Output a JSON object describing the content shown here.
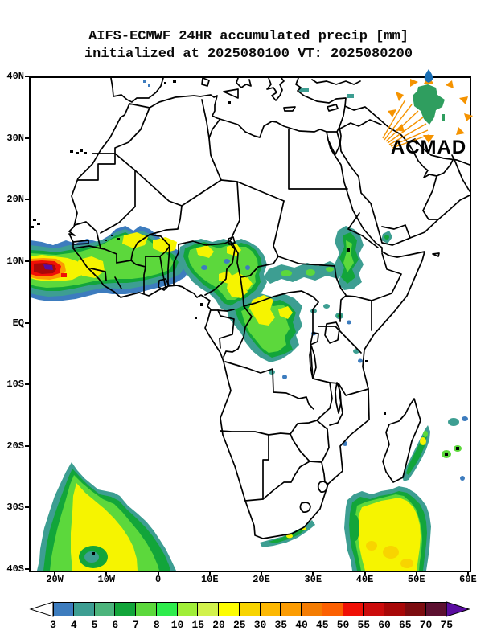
{
  "title": {
    "line1": "AIFS-ECMWF 24HR accumulated precip [mm]",
    "line2": "initialized at 2025080100 VT: 2025080200"
  },
  "logo": {
    "text": "ACMAD",
    "text_color": "#1566a8",
    "africa_color": "#2f9e5f",
    "ray_color": "#f59300",
    "drop_color": "#1a6fb5"
  },
  "axes": {
    "lat_labels": [
      "40N",
      "30N",
      "20N",
      "10N",
      "EQ",
      "10S",
      "20S",
      "30S",
      "40S"
    ],
    "lon_labels": [
      "20W",
      "10W",
      "0",
      "10E",
      "20E",
      "30E",
      "40E",
      "50E",
      "60E"
    ]
  },
  "colorbar": {
    "labels": [
      "3",
      "4",
      "5",
      "6",
      "7",
      "8",
      "10",
      "15",
      "20",
      "25",
      "30",
      "35",
      "40",
      "45",
      "50",
      "55",
      "60",
      "65",
      "70",
      "75"
    ],
    "cell_colors": [
      "#3d7cbe",
      "#3d9e92",
      "#4cb47c",
      "#12a53a",
      "#5cd83c",
      "#2eec4c",
      "#a0ee38",
      "#d2f24c",
      "#fdfd02",
      "#f8d400",
      "#fdb802",
      "#fc9c02",
      "#f47c02",
      "#fc6002",
      "#f01006",
      "#cc0c0c",
      "#a80808",
      "#7c0c10",
      "#5c1030"
    ],
    "under_color": "#ffffff",
    "over_color": "#5a0da0"
  },
  "chart_data": {
    "type": "heatmap",
    "subtype": "filled-contour geographic precipitation map",
    "title": "AIFS-ECMWF 24HR accumulated precip [mm]",
    "model": "AIFS-ECMWF",
    "variable": "24HR accumulated precipitation",
    "units": "mm",
    "initialized": "2025080100",
    "valid_time": "2025080200",
    "source": "ACMAD",
    "domain": {
      "lon_range": [
        -25,
        60
      ],
      "lat_range": [
        -40,
        40
      ]
    },
    "scale_levels_mm": [
      3,
      4,
      5,
      6,
      7,
      8,
      10,
      15,
      20,
      25,
      30,
      35,
      40,
      45,
      50,
      55,
      60,
      65,
      70,
      75
    ],
    "legend_position": "bottom",
    "grid": false,
    "precip_regions": [
      {
        "name": "West Africa offshore core (Guinea/Sierra Leone coast)",
        "lon": [
          -25,
          -12
        ],
        "lat": [
          5,
          12
        ],
        "max_mm": "75+",
        "note": "intense red core with small >75mm purple spot near 19W,8N"
      },
      {
        "name": "Sahel band Senegal-Mali-Burkina-Niger",
        "lon": [
          -17,
          5
        ],
        "lat": [
          8,
          15
        ],
        "max_mm": 25,
        "note": "green band with yellow cores near 5W,14N and 0E,14N"
      },
      {
        "name": "Guinea highlands",
        "lon": [
          -14,
          -9
        ],
        "lat": [
          8,
          12
        ],
        "max_mm": 25
      },
      {
        "name": "Nigeria-Cameroon band",
        "lon": [
          4,
          16
        ],
        "lat": [
          4,
          13
        ],
        "max_mm": 25,
        "note": "green with scattered yellow cells"
      },
      {
        "name": "CAR / Congo basin mass",
        "lon": [
          14,
          27
        ],
        "lat": [
          -5,
          9
        ],
        "max_mm": 25,
        "note": "broad green with yellow cores near 15E,7N and 20E,2N"
      },
      {
        "name": "South Sudan teal arm",
        "lon": [
          22,
          34
        ],
        "lat": [
          4,
          10
        ],
        "max_mm": 8
      },
      {
        "name": "Ethiopian highlands blob",
        "lon": [
          34,
          40
        ],
        "lat": [
          6,
          16
        ],
        "max_mm": 10
      },
      {
        "name": "Yemen coast cell",
        "lon": [
          43,
          45
        ],
        "lat": [
          13,
          16
        ],
        "max_mm": 8
      },
      {
        "name": "Uganda / Kenya lake dots",
        "lon": [
          30,
          37
        ],
        "lat": [
          -2,
          3
        ],
        "max_mm": 5
      },
      {
        "name": "South Atlantic fin-shaped system",
        "lon": [
          -22,
          4
        ],
        "lat": [
          -40,
          -22
        ],
        "max_mm": 25,
        "note": "yellow core along spine, teal fringe"
      },
      {
        "name": "SW Indian Ocean system SE of Madagascar",
        "lon": [
          36,
          53
        ],
        "lat": [
          -40,
          -28
        ],
        "max_mm": 30,
        "note": "large yellow core with gold cells"
      },
      {
        "name": "Streak east of Madagascar",
        "lon": [
          47,
          52
        ],
        "lat": [
          -25,
          -15
        ],
        "max_mm": 15
      },
      {
        "name": "Reunion / Mauritius cells",
        "lon": [
          55,
          58
        ],
        "lat": [
          -22,
          -19
        ],
        "max_mm": 10
      },
      {
        "name": "South Africa south coast streak",
        "lon": [
          19,
          31
        ],
        "lat": [
          -36,
          -33
        ],
        "max_mm": 10
      },
      {
        "name": "Mediterranean specks (Aegean, Cyprus)",
        "lon": [
          26,
          36
        ],
        "lat": [
          34,
          39
        ],
        "max_mm": 5
      }
    ]
  }
}
